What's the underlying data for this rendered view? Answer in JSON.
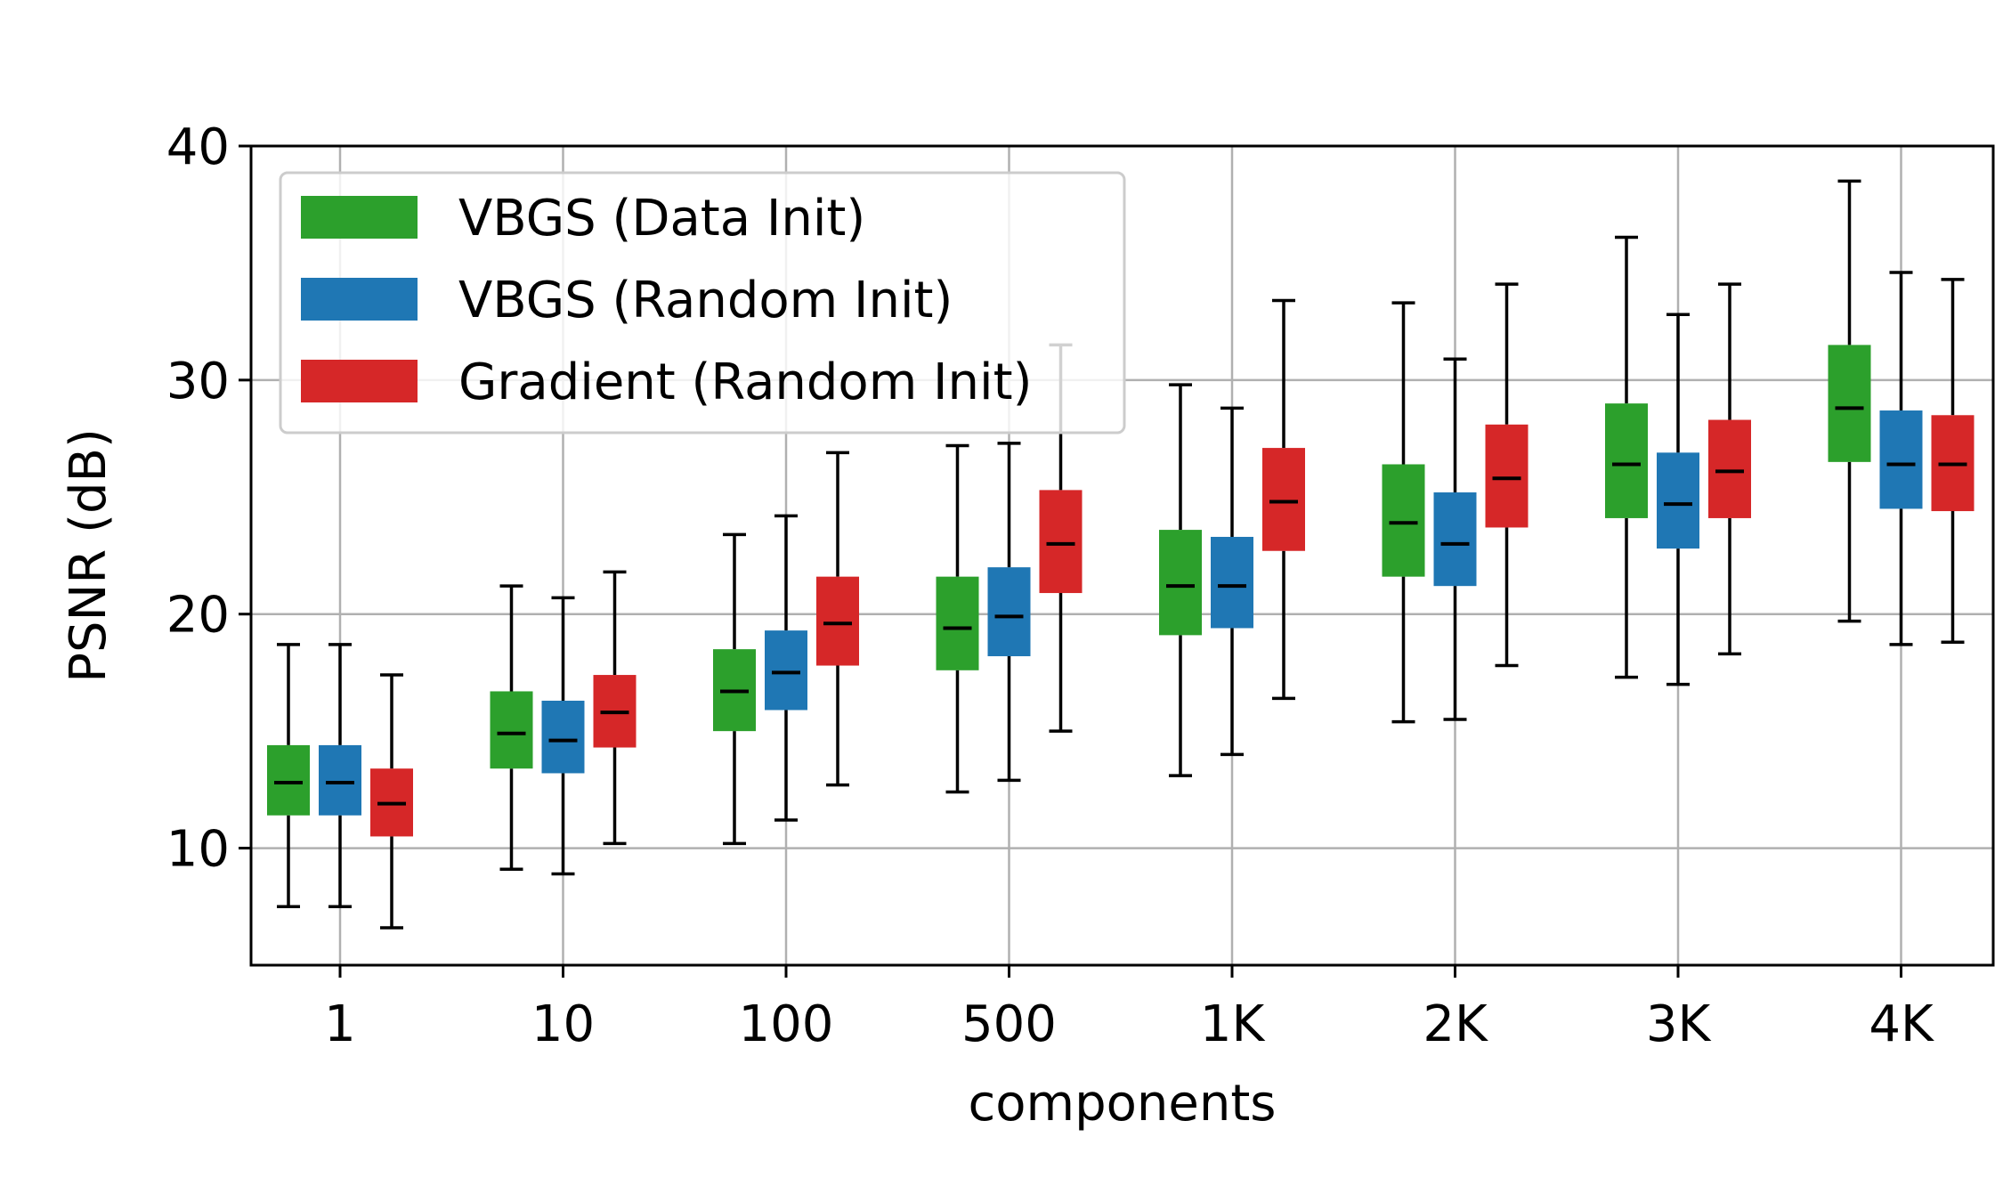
{
  "chart_data": {
    "type": "box",
    "title": "",
    "xlabel": "components",
    "ylabel": "PSNR (dB)",
    "ylim": [
      5,
      40
    ],
    "yticks": [
      10,
      20,
      30,
      40
    ],
    "grid": true,
    "legend_position": "top-left",
    "categories": [
      "1",
      "10",
      "100",
      "500",
      "1K",
      "2K",
      "3K",
      "4K"
    ],
    "series": [
      {
        "name": "VBGS (Data Init)",
        "color": "#2ca02c",
        "boxes": [
          {
            "whislo": 7.5,
            "q1": 11.4,
            "med": 12.8,
            "q3": 14.4,
            "whishi": 18.7
          },
          {
            "whislo": 9.1,
            "q1": 13.4,
            "med": 14.9,
            "q3": 16.7,
            "whishi": 21.2
          },
          {
            "whislo": 10.2,
            "q1": 15.0,
            "med": 16.7,
            "q3": 18.5,
            "whishi": 23.4
          },
          {
            "whislo": 12.4,
            "q1": 17.6,
            "med": 19.4,
            "q3": 21.6,
            "whishi": 27.2
          },
          {
            "whislo": 13.1,
            "q1": 19.1,
            "med": 21.2,
            "q3": 23.6,
            "whishi": 29.8
          },
          {
            "whislo": 15.4,
            "q1": 21.6,
            "med": 23.9,
            "q3": 26.4,
            "whishi": 33.3
          },
          {
            "whislo": 17.3,
            "q1": 24.1,
            "med": 26.4,
            "q3": 29.0,
            "whishi": 36.1
          },
          {
            "whislo": 19.7,
            "q1": 26.5,
            "med": 28.8,
            "q3": 31.5,
            "whishi": 38.5
          }
        ]
      },
      {
        "name": "VBGS (Random Init)",
        "color": "#1f77b4",
        "boxes": [
          {
            "whislo": 7.5,
            "q1": 11.4,
            "med": 12.8,
            "q3": 14.4,
            "whishi": 18.7
          },
          {
            "whislo": 8.9,
            "q1": 13.2,
            "med": 14.6,
            "q3": 16.3,
            "whishi": 20.7
          },
          {
            "whislo": 11.2,
            "q1": 15.9,
            "med": 17.5,
            "q3": 19.3,
            "whishi": 24.2
          },
          {
            "whislo": 12.9,
            "q1": 18.2,
            "med": 19.9,
            "q3": 22.0,
            "whishi": 27.3
          },
          {
            "whislo": 14.0,
            "q1": 19.4,
            "med": 21.2,
            "q3": 23.3,
            "whishi": 28.8
          },
          {
            "whislo": 15.5,
            "q1": 21.2,
            "med": 23.0,
            "q3": 25.2,
            "whishi": 30.9
          },
          {
            "whislo": 17.0,
            "q1": 22.8,
            "med": 24.7,
            "q3": 26.9,
            "whishi": 32.8
          },
          {
            "whislo": 18.7,
            "q1": 24.5,
            "med": 26.4,
            "q3": 28.7,
            "whishi": 34.6
          }
        ]
      },
      {
        "name": "Gradient (Random Init)",
        "color": "#d62728",
        "boxes": [
          {
            "whislo": 6.6,
            "q1": 10.5,
            "med": 11.9,
            "q3": 13.4,
            "whishi": 17.4
          },
          {
            "whislo": 10.2,
            "q1": 14.3,
            "med": 15.8,
            "q3": 17.4,
            "whishi": 21.8
          },
          {
            "whislo": 12.7,
            "q1": 17.8,
            "med": 19.6,
            "q3": 21.6,
            "whishi": 26.9
          },
          {
            "whislo": 15.0,
            "q1": 20.9,
            "med": 23.0,
            "q3": 25.3,
            "whishi": 31.5
          },
          {
            "whislo": 16.4,
            "q1": 22.7,
            "med": 24.8,
            "q3": 27.1,
            "whishi": 33.4
          },
          {
            "whislo": 17.8,
            "q1": 23.7,
            "med": 25.8,
            "q3": 28.1,
            "whishi": 34.1
          },
          {
            "whislo": 18.3,
            "q1": 24.1,
            "med": 26.1,
            "q3": 28.3,
            "whishi": 34.1
          },
          {
            "whislo": 18.8,
            "q1": 24.4,
            "med": 26.4,
            "q3": 28.5,
            "whishi": 34.3
          }
        ]
      }
    ]
  }
}
